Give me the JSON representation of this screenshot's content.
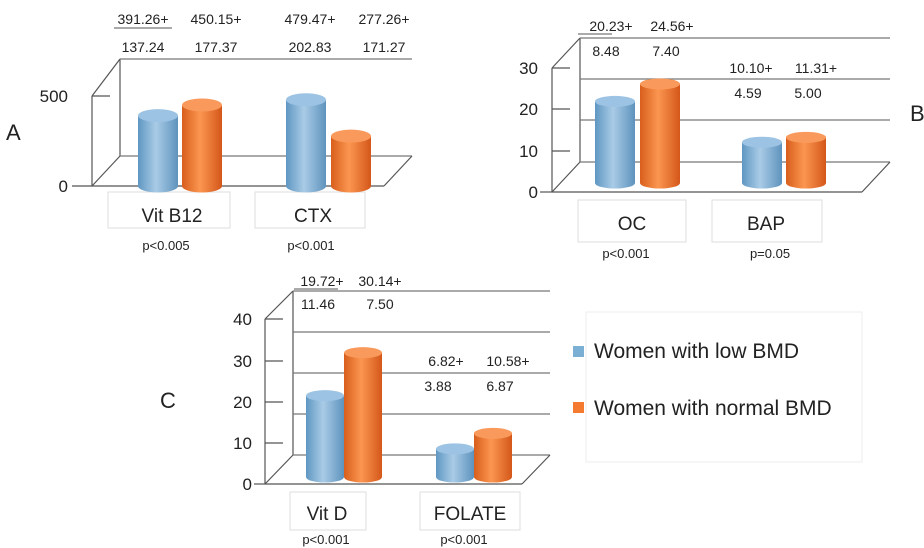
{
  "legend": {
    "items": [
      {
        "label": "Women with low BMD",
        "color": "#7bafd4"
      },
      {
        "label": "Women with normal BMD",
        "color": "#f47a30"
      }
    ]
  },
  "chart_data": [
    {
      "panel": "A",
      "type": "bar",
      "categories": [
        "Vit B12",
        "CTX"
      ],
      "p_values": [
        "p<0.005",
        "p<0.001"
      ],
      "series": [
        {
          "name": "Women with low BMD",
          "values": [
            391.26,
            479.47
          ],
          "sd": [
            "137.24",
            "202.83"
          ],
          "mean_labels": [
            "391.26+",
            "479.47+"
          ]
        },
        {
          "name": "Women with normal BMD",
          "values": [
            450.15,
            277.26
          ],
          "sd": [
            "177.37",
            "171.27"
          ],
          "mean_labels": [
            "450.15+",
            "277.26+"
          ]
        }
      ],
      "yticks": [
        "0",
        "500"
      ],
      "ylim": [
        0,
        800
      ]
    },
    {
      "panel": "B",
      "type": "bar",
      "categories": [
        "OC",
        "BAP"
      ],
      "p_values": [
        "p<0.001",
        "p=0.05"
      ],
      "series": [
        {
          "name": "Women with low BMD",
          "values": [
            20.23,
            10.1
          ],
          "sd": [
            "8.48",
            "4.59"
          ],
          "mean_labels": [
            "20.23+",
            "10.10+"
          ]
        },
        {
          "name": "Women with normal BMD",
          "values": [
            24.56,
            11.31
          ],
          "sd": [
            "7.40",
            "5.00"
          ],
          "mean_labels": [
            "24.56+",
            "11.31+"
          ]
        }
      ],
      "yticks": [
        "0",
        "10",
        "20",
        "30"
      ],
      "ylim": [
        0,
        30
      ]
    },
    {
      "panel": "C",
      "type": "bar",
      "categories": [
        "Vit D",
        "FOLATE"
      ],
      "p_values": [
        "p<0.001",
        "p<0.001"
      ],
      "series": [
        {
          "name": "Women with low BMD",
          "values": [
            19.72,
            6.82
          ],
          "sd": [
            "11.46",
            "3.88"
          ],
          "mean_labels": [
            "19.72+",
            "6.82+"
          ]
        },
        {
          "name": "Women with normal BMD",
          "values": [
            30.14,
            10.58
          ],
          "sd": [
            "7.50",
            "6.87"
          ],
          "mean_labels": [
            "30.14+",
            "10.58+"
          ]
        }
      ],
      "yticks": [
        "0",
        "10",
        "20",
        "30",
        "40"
      ],
      "ylim": [
        0,
        40
      ]
    }
  ]
}
